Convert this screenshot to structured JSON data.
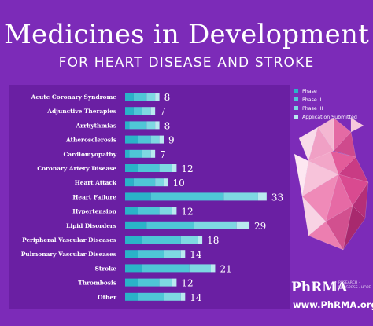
{
  "header": {
    "title": "Medicines in Development",
    "subtitle": "FOR  HEART DISEASE AND STROKE"
  },
  "footer": {
    "brand": "PhRMA",
    "tagline": "RESEARCH · PROGRESS · HOPE",
    "website": "www.PhRMA.org"
  },
  "colors": {
    "background": "#7c2bb8",
    "panel": "#6a1fa3",
    "phase_1": "#2ab3c8",
    "phase_2": "#4fc6d6",
    "phase_3": "#7ed8e2",
    "application_submitted": "#b9eaf0"
  },
  "chart_data": {
    "type": "bar",
    "orientation": "horizontal",
    "stacked": true,
    "categories": [
      "Acute Coronary Syndrome",
      "Adjunctive Therapies",
      "Arrhythmias",
      "Atherosclerosis",
      "Cardiomyopathy",
      "Coronary Artery Disease",
      "Heart Attack",
      "Heart Failure",
      "Hypertension",
      "Lipid Disorders",
      "Peripheral Vascular Diseases",
      "Pulmonary Vascular Diseases",
      "Stroke",
      "Thrombosis",
      "Other"
    ],
    "totals": [
      8,
      7,
      8,
      9,
      7,
      12,
      10,
      33,
      12,
      29,
      18,
      14,
      21,
      12,
      14
    ],
    "series": [
      {
        "name": "Phase I",
        "values": [
          2,
          2,
          1,
          3,
          1,
          3,
          2,
          6,
          3,
          5,
          4,
          3,
          4,
          3,
          3
        ]
      },
      {
        "name": "Phase II",
        "values": [
          3,
          2,
          4,
          3,
          3,
          5,
          5,
          17,
          5,
          11,
          9,
          6,
          11,
          5,
          6
        ]
      },
      {
        "name": "Phase III",
        "values": [
          2,
          2,
          2,
          2,
          2,
          3,
          2,
          8,
          3,
          10,
          4,
          4,
          5,
          3,
          4
        ]
      },
      {
        "name": "Application Submitted",
        "values": [
          1,
          1,
          1,
          1,
          1,
          1,
          1,
          2,
          1,
          3,
          1,
          1,
          1,
          1,
          1
        ]
      }
    ],
    "xlim": [
      0,
      40
    ],
    "grid": false,
    "legend_position": "right",
    "legend": [
      "Phase I",
      "Phase II",
      "Phase III",
      "Application Submitted"
    ]
  }
}
